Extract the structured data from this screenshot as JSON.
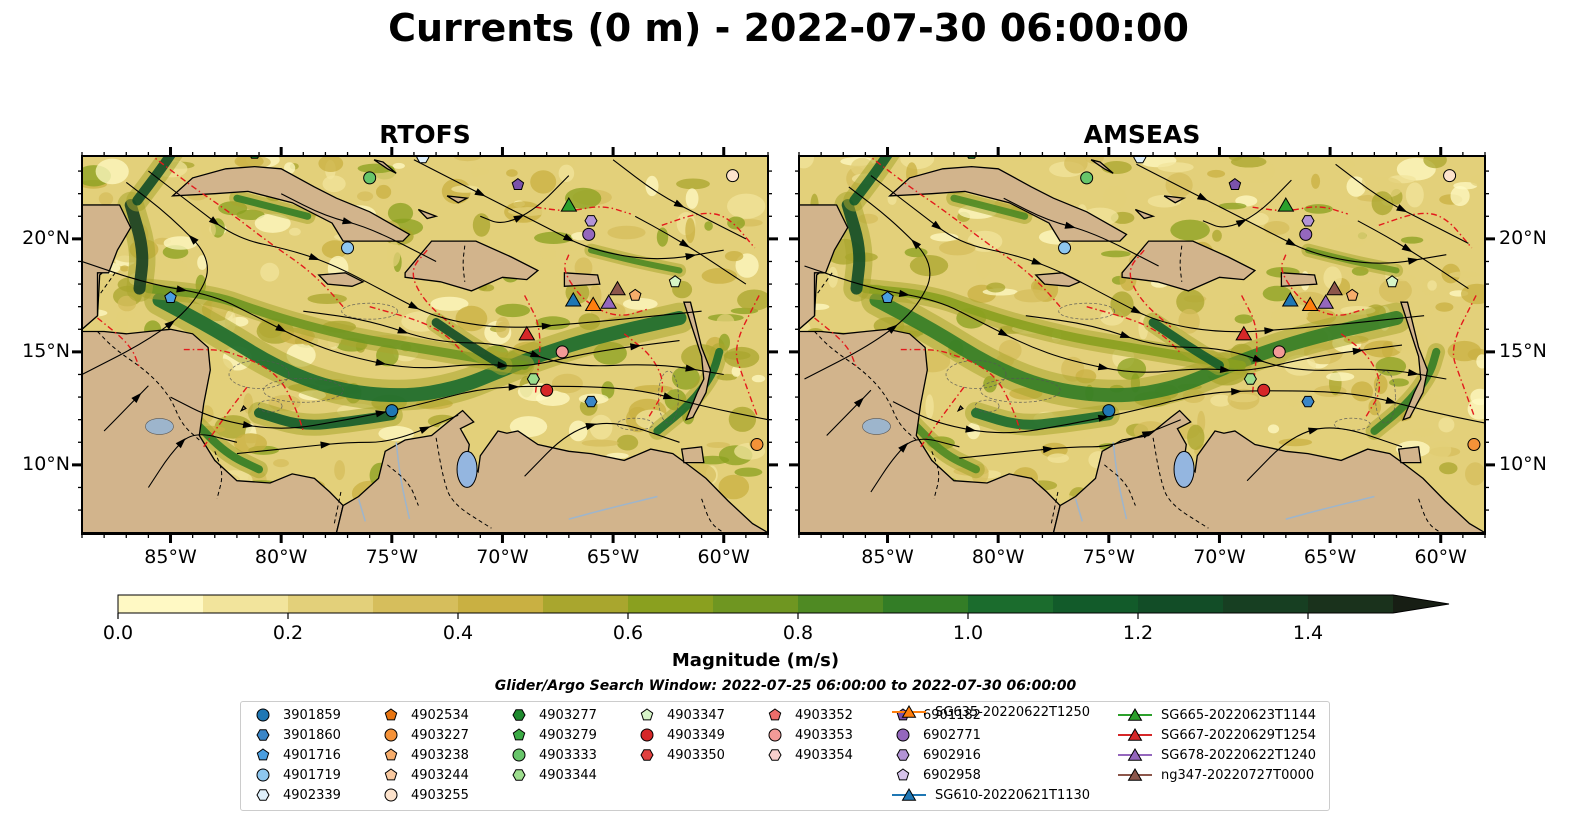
{
  "title": "Currents (0 m) - 2022-07-30 06:00:00",
  "panels": [
    {
      "title": "RTOFS",
      "model_data_in_gulf_of_mexico": true
    },
    {
      "title": "AMSEAS",
      "model_data_in_gulf_of_mexico": false
    }
  ],
  "map": {
    "lon_range": [
      -89,
      -58
    ],
    "lat_range": [
      7,
      24
    ],
    "lon_ticks": [
      {
        "value": -85,
        "label": "85°W"
      },
      {
        "value": -80,
        "label": "80°W"
      },
      {
        "value": -75,
        "label": "75°W"
      },
      {
        "value": -70,
        "label": "70°W"
      },
      {
        "value": -65,
        "label": "65°W"
      },
      {
        "value": -60,
        "label": "60°W"
      }
    ],
    "lat_ticks": [
      {
        "value": 20,
        "label": "20°N"
      },
      {
        "value": 15,
        "label": "15°N"
      },
      {
        "value": 10,
        "label": "10°N"
      }
    ],
    "colors": {
      "land": "#d2b48c",
      "ocean": "#94b6e0",
      "eez": "#e31a1c",
      "borders": "#000000",
      "rivers": "#9db5cc"
    },
    "isobath_label": "1000"
  },
  "colorbar": {
    "label": "Magnitude (m/s)",
    "range": [
      0,
      1.5
    ],
    "extend": "max",
    "ticks": [
      {
        "value": 0,
        "label": "0.0"
      },
      {
        "value": 0.2,
        "label": "0.2"
      },
      {
        "value": 0.4,
        "label": "0.4"
      },
      {
        "value": 0.6,
        "label": "0.6"
      },
      {
        "value": 0.8,
        "label": "0.8"
      },
      {
        "value": 1.0,
        "label": "1.0"
      },
      {
        "value": 1.2,
        "label": "1.2"
      },
      {
        "value": 1.4,
        "label": "1.4"
      }
    ],
    "colors": [
      "#fff9c4",
      "#f2e49c",
      "#e3d07a",
      "#d6be5c",
      "#c9b042",
      "#a9a62e",
      "#8aa01f",
      "#6f9621",
      "#4f8a23",
      "#337d26",
      "#1b6c2d",
      "#125b2a",
      "#124d27",
      "#173f22",
      "#1a321c"
    ]
  },
  "search_window": "Glider/Argo Search Window: 2022-07-25 06:00:00 to 2022-07-30 06:00:00",
  "platforms": [
    {
      "id": "3901859",
      "marker": "circle",
      "color": "#1f77b4",
      "lon": -75,
      "lat": 12.4,
      "amseas_lon": -75,
      "amseas_lat": 12.4
    },
    {
      "id": "3901860",
      "marker": "hexagon",
      "color": "#3a86c8",
      "lon": -66,
      "lat": 12.8,
      "amseas_lon": -66,
      "amseas_lat": 12.8
    },
    {
      "id": "4901716",
      "marker": "pentagon",
      "color": "#4a9ee0",
      "lon": -85,
      "lat": 17.4,
      "amseas_lon": -85,
      "amseas_lat": 17.4
    },
    {
      "id": "4901719",
      "marker": "circle",
      "color": "#8ec7f0",
      "lon": -77,
      "lat": 19.6,
      "amseas_lon": -77,
      "amseas_lat": 19.6
    },
    {
      "id": "4902339",
      "marker": "hexagon",
      "color": "#dff0fb",
      "lon": -73.6,
      "lat": 23.6,
      "amseas_lon": -73.6,
      "amseas_lat": 23.6
    },
    {
      "id": "4902534",
      "marker": "pentagon",
      "color": "#e87511",
      "lon": null,
      "lat": null,
      "amseas_lon": null,
      "amseas_lat": null
    },
    {
      "id": "4903227",
      "marker": "circle",
      "color": "#f59238",
      "lon": -58.5,
      "lat": 10.9,
      "amseas_lon": -58.5,
      "amseas_lat": 10.9
    },
    {
      "id": "4903238",
      "marker": "pentagon",
      "color": "#f7ad6b",
      "lon": -64,
      "lat": 17.5,
      "amseas_lon": -64,
      "amseas_lat": 17.5
    },
    {
      "id": "4903244",
      "marker": "pentagon",
      "color": "#f9c9a0",
      "lon": null,
      "lat": null,
      "amseas_lon": null,
      "amseas_lat": null
    },
    {
      "id": "4903255",
      "marker": "circle",
      "color": "#fde3cc",
      "lon": -59.6,
      "lat": 22.8,
      "amseas_lon": -59.6,
      "amseas_lat": 22.8
    },
    {
      "id": "4903277",
      "marker": "hexagon",
      "color": "#1e8a2e",
      "lon": -81.2,
      "lat": 23.8,
      "amseas_lon": -81.2,
      "amseas_lat": 23.8
    },
    {
      "id": "4903279",
      "marker": "pentagon",
      "color": "#3bab45",
      "lon": null,
      "lat": null,
      "amseas_lon": null,
      "amseas_lat": null
    },
    {
      "id": "4903333",
      "marker": "circle",
      "color": "#67c56a",
      "lon": -76,
      "lat": 22.7,
      "amseas_lon": -76,
      "amseas_lat": 22.7
    },
    {
      "id": "4903344",
      "marker": "hexagon",
      "color": "#9ddd8e",
      "lon": -68.6,
      "lat": 13.8,
      "amseas_lon": -68.6,
      "amseas_lat": 13.8
    },
    {
      "id": "4903347",
      "marker": "pentagon",
      "color": "#d7f5c8",
      "lon": -62.2,
      "lat": 18.1,
      "amseas_lon": -62.2,
      "amseas_lat": 18.1
    },
    {
      "id": "4903349",
      "marker": "circle",
      "color": "#d62728",
      "lon": -68,
      "lat": 13.3,
      "amseas_lon": -68,
      "amseas_lat": 13.3
    },
    {
      "id": "4903350",
      "marker": "hexagon",
      "color": "#e0413f",
      "lon": null,
      "lat": null,
      "amseas_lon": null,
      "amseas_lat": null
    },
    {
      "id": "4903352",
      "marker": "pentagon",
      "color": "#ee6d6a",
      "lon": null,
      "lat": null,
      "amseas_lon": null,
      "amseas_lat": null
    },
    {
      "id": "4903353",
      "marker": "circle",
      "color": "#f29a97",
      "lon": -67.3,
      "lat": 15,
      "amseas_lon": -67.3,
      "amseas_lat": 15
    },
    {
      "id": "4903354",
      "marker": "hexagon",
      "color": "#f9cfcd",
      "lon": null,
      "lat": null,
      "amseas_lon": null,
      "amseas_lat": null
    },
    {
      "id": "6901182",
      "marker": "pentagon",
      "color": "#7b52ab",
      "lon": -69.3,
      "lat": 22.4,
      "amseas_lon": -69.3,
      "amseas_lat": 22.4
    },
    {
      "id": "6902771",
      "marker": "circle",
      "color": "#9467bd",
      "lon": -66.1,
      "lat": 20.2,
      "amseas_lon": -66.1,
      "amseas_lat": 20.2
    },
    {
      "id": "6902916",
      "marker": "hexagon",
      "color": "#b394d6",
      "lon": -66,
      "lat": 20.8,
      "amseas_lon": -66,
      "amseas_lat": 20.8
    },
    {
      "id": "6902958",
      "marker": "pentagon",
      "color": "#d6c3ea",
      "lon": null,
      "lat": null,
      "amseas_lon": null,
      "amseas_lat": null
    }
  ],
  "gliders": [
    {
      "id": "SG610-20220621T1130",
      "color": "#1f77b4",
      "lon": -66.8,
      "lat": 17.3
    },
    {
      "id": "SG635-20220622T1250",
      "color": "#ff7f0e",
      "lon": -65.9,
      "lat": 17.1
    },
    {
      "id": "SG665-20220623T1144",
      "color": "#2ca02c",
      "lon": -67,
      "lat": 21.5
    },
    {
      "id": "SG667-20220629T1254",
      "color": "#d62728",
      "lon": -68.9,
      "lat": 15.8
    },
    {
      "id": "SG678-20220622T1240",
      "color": "#9467bd",
      "lon": -65.2,
      "lat": 17.2
    },
    {
      "id": "ng347-20220727T0000",
      "color": "#8c564b",
      "lon": -64.8,
      "lat": 17.8
    }
  ]
}
